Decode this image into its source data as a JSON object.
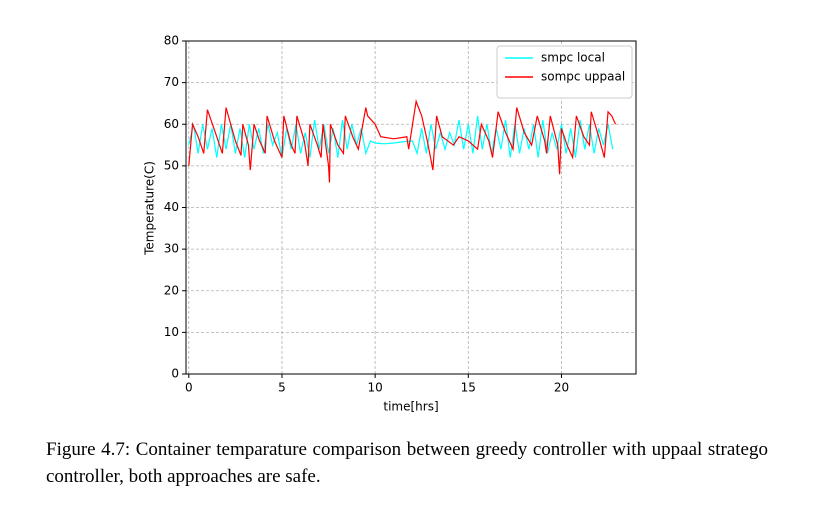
{
  "chart_data": {
    "type": "line",
    "xlabel": "time[hrs]",
    "ylabel": "Temperature(C)",
    "xlim": [
      -0.15,
      24
    ],
    "ylim": [
      0,
      80
    ],
    "xticks": [
      0,
      5,
      10,
      15,
      20
    ],
    "yticks": [
      0,
      10,
      20,
      30,
      40,
      50,
      60,
      70,
      80
    ],
    "grid": true,
    "legend": "upper right",
    "series": [
      {
        "name": "smpc local",
        "color": "#00ffff",
        "x": [
          0,
          0.25,
          0.5,
          0.75,
          1,
          1.25,
          1.5,
          1.75,
          2,
          2.25,
          2.5,
          2.75,
          3,
          3.25,
          3.5,
          3.75,
          4,
          4.25,
          4.5,
          4.75,
          5,
          5.25,
          5.5,
          5.75,
          6,
          6.25,
          6.5,
          6.75,
          7,
          7.25,
          7.5,
          7.75,
          8,
          8.25,
          8.5,
          8.75,
          9,
          9.25,
          9.5,
          9.75,
          10,
          10.5,
          11,
          11.5,
          12,
          12.25,
          12.5,
          12.75,
          13,
          13.25,
          13.5,
          13.75,
          14,
          14.25,
          14.5,
          14.75,
          15,
          15.25,
          15.5,
          15.75,
          16,
          16.25,
          16.5,
          16.75,
          17,
          17.25,
          17.5,
          17.75,
          18,
          18.25,
          18.5,
          18.75,
          19,
          19.25,
          19.5,
          19.75,
          20,
          20.25,
          20.5,
          20.75,
          21,
          21.25,
          21.5,
          21.75,
          22,
          22.25,
          22.5,
          22.75
        ],
        "values": [
          55,
          60,
          53,
          60,
          54,
          59,
          52,
          60,
          54,
          60,
          53,
          59,
          52,
          60,
          54,
          59,
          53,
          60,
          55,
          58,
          52,
          59,
          54,
          60,
          53,
          58,
          52,
          61,
          54,
          60,
          53,
          59,
          52,
          61,
          54,
          60,
          55,
          59,
          53,
          56,
          55.5,
          55.3,
          55.5,
          55.8,
          56,
          53,
          59,
          53,
          60,
          54,
          58,
          54,
          58,
          55,
          61,
          54,
          60,
          53,
          62,
          54,
          60,
          53,
          59,
          54,
          61,
          52,
          60,
          53,
          59,
          54,
          60,
          52,
          61,
          53,
          58,
          54,
          60,
          53,
          59,
          52,
          61,
          54,
          60,
          53,
          59,
          55,
          60,
          54
        ]
      },
      {
        "name": "sompc uppaal",
        "color": "#ff0000",
        "x": [
          0,
          0.2,
          0.5,
          0.8,
          1,
          1.5,
          1.8,
          2,
          2.5,
          2.8,
          2.9,
          3.2,
          3.3,
          3.5,
          3.8,
          4.1,
          4.2,
          4.6,
          5,
          5.1,
          5.5,
          5.7,
          5.8,
          6.2,
          6.4,
          6.5,
          6.9,
          7.1,
          7.2,
          7.5,
          7.55,
          7.6,
          8,
          8.3,
          8.4,
          8.8,
          9.1,
          9.5,
          9.6,
          10,
          10.3,
          11,
          11.7,
          11.8,
          12.2,
          12.5,
          12.7,
          12.8,
          13.1,
          13.3,
          13.6,
          14.2,
          14.5,
          15,
          15.5,
          15.7,
          16.1,
          16.3,
          16.6,
          17,
          17.4,
          17.6,
          18,
          18.4,
          18.7,
          19.1,
          19.2,
          19.4,
          19.8,
          19.9,
          20,
          20.3,
          20.6,
          20.8,
          21.2,
          21.5,
          21.6,
          22,
          22.3,
          22.5,
          22.7,
          22.9
        ],
        "values": [
          50,
          60,
          57,
          53,
          63.5,
          57,
          53,
          64,
          56,
          52.5,
          60,
          55,
          49,
          60,
          56,
          53,
          62,
          56,
          52,
          62,
          55,
          53,
          62,
          56,
          50,
          60,
          55,
          52,
          60,
          50,
          46,
          60,
          55,
          53,
          62,
          57,
          54,
          64,
          62,
          60,
          57,
          56.5,
          57,
          54,
          65.5,
          62,
          58,
          56,
          49,
          62,
          57,
          55,
          57,
          56,
          54,
          60,
          56,
          52,
          63,
          58,
          54,
          64,
          58,
          55,
          62,
          56,
          53,
          62,
          55,
          48,
          59,
          55,
          52,
          62,
          57,
          55,
          63,
          57,
          52,
          63,
          62,
          60
        ]
      }
    ]
  },
  "caption": "Figure 4.7: Container temparature comparison between greedy controller with uppaal stratego controller, both approaches are safe."
}
